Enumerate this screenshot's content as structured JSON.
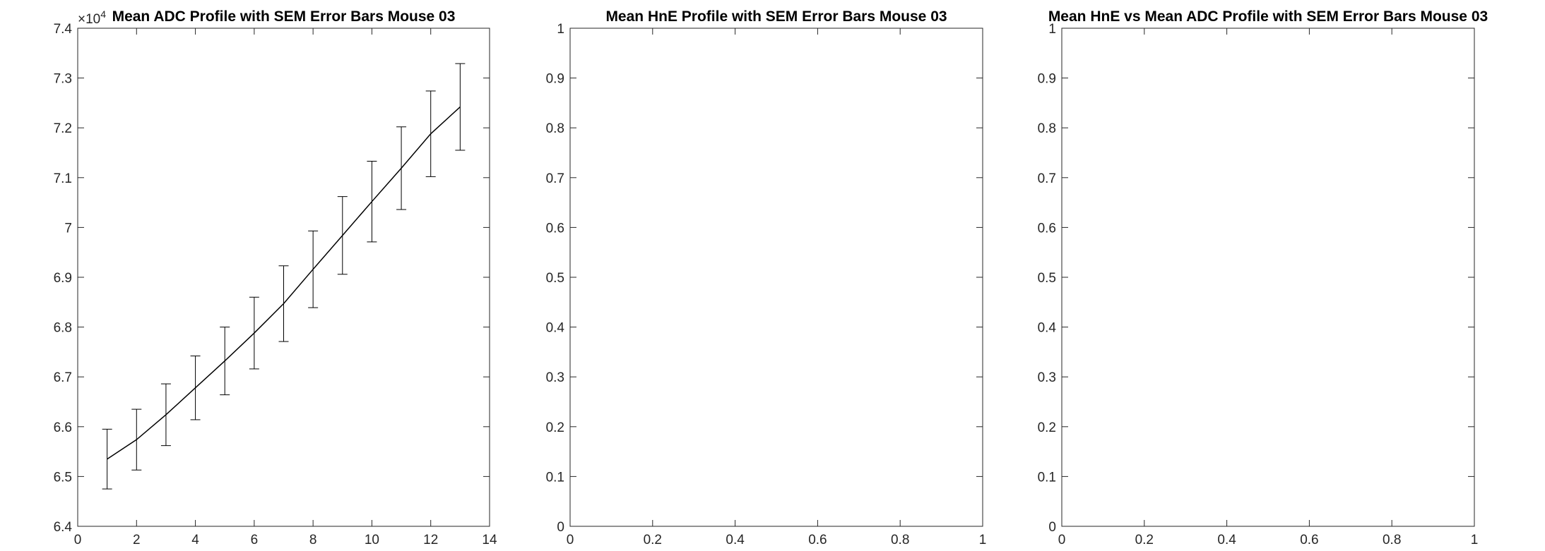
{
  "chart_data": [
    {
      "type": "line",
      "title": "Mean ADC Profile with SEM Error Bars Mouse 03",
      "xlabel": "",
      "ylabel": "",
      "xlim": [
        0,
        14
      ],
      "ylim": [
        6.4,
        7.4
      ],
      "y_exponent_label": "×10",
      "y_exponent_value": "4",
      "xticks": [
        "0",
        "2",
        "4",
        "6",
        "8",
        "10",
        "12",
        "14"
      ],
      "yticks": [
        "6.4",
        "6.5",
        "6.6",
        "6.7",
        "6.8",
        "6.9",
        "7",
        "7.1",
        "7.2",
        "7.3",
        "7.4"
      ],
      "line_color": "#000000",
      "series": [
        {
          "x": [
            1,
            2,
            3,
            4,
            5,
            6,
            7,
            8,
            9,
            10,
            11,
            12,
            13
          ],
          "y": [
            6.535,
            6.574,
            6.624,
            6.678,
            6.732,
            6.788,
            6.847,
            6.916,
            6.984,
            7.052,
            7.119,
            7.188,
            7.242
          ],
          "err": [
            0.06,
            0.061,
            0.062,
            0.064,
            0.068,
            0.072,
            0.076,
            0.077,
            0.078,
            0.081,
            0.083,
            0.086,
            0.087
          ]
        }
      ]
    },
    {
      "type": "line",
      "title": "Mean HnE Profile with SEM Error Bars Mouse 03",
      "xlabel": "",
      "ylabel": "",
      "xlim": [
        0,
        1
      ],
      "ylim": [
        0,
        1
      ],
      "xticks": [
        "0",
        "0.2",
        "0.4",
        "0.6",
        "0.8",
        "1"
      ],
      "yticks": [
        "0",
        "0.1",
        "0.2",
        "0.3",
        "0.4",
        "0.5",
        "0.6",
        "0.7",
        "0.8",
        "0.9",
        "1"
      ],
      "series": []
    },
    {
      "type": "line",
      "title": "Mean HnE vs Mean ADC Profile with SEM Error Bars Mouse 03",
      "xlabel": "",
      "ylabel": "",
      "xlim": [
        0,
        1
      ],
      "ylim": [
        0,
        1
      ],
      "xticks": [
        "0",
        "0.2",
        "0.4",
        "0.6",
        "0.8",
        "1"
      ],
      "yticks": [
        "0",
        "0.1",
        "0.2",
        "0.3",
        "0.4",
        "0.5",
        "0.6",
        "0.7",
        "0.8",
        "0.9",
        "1"
      ],
      "series": []
    }
  ]
}
